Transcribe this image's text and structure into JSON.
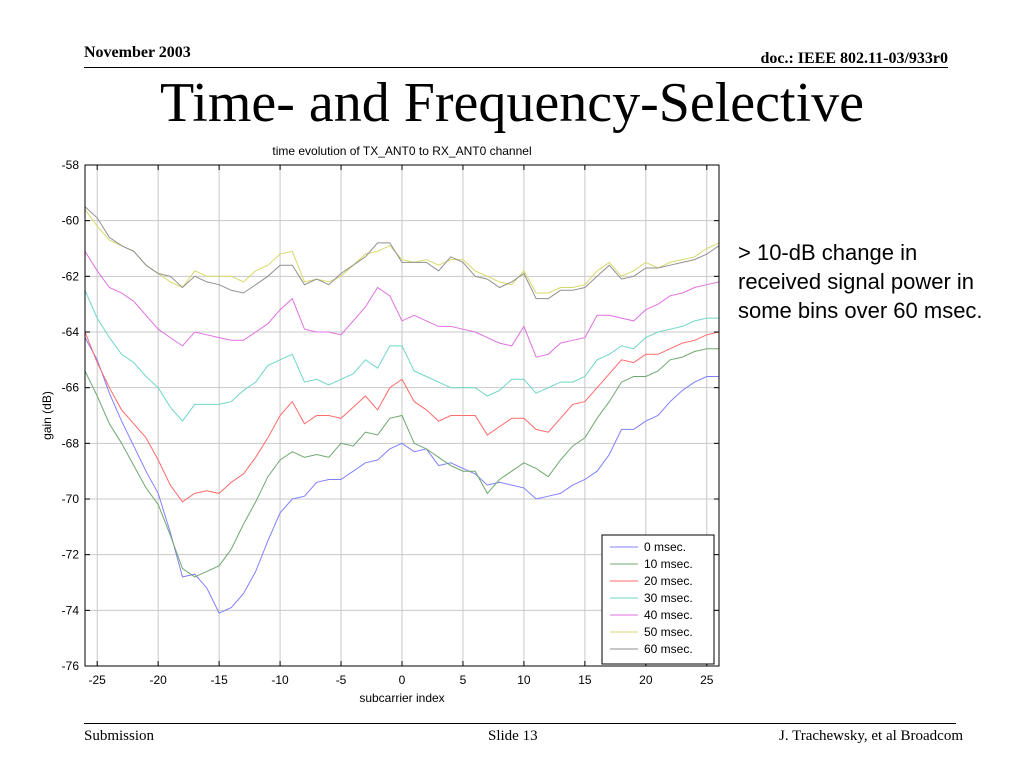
{
  "header": {
    "date": "November 2003",
    "doc": "doc.: IEEE 802.11-03/933r0"
  },
  "slide_title": "Time- and Frequency-Selective",
  "note": "> 10-dB change in received signal power in some bins over 60 msec.",
  "footer": {
    "left": "Submission",
    "center": "Slide 13",
    "right": "J. Trachewsky, et al Broadcom"
  },
  "chart_data": {
    "type": "line",
    "title": "time evolution of TX_ANT0 to RX_ANT0 channel",
    "xlabel": "subcarrier index",
    "ylabel": "gain (dB)",
    "xlim": [
      -26,
      26
    ],
    "ylim": [
      -76,
      -58
    ],
    "xticks": [
      -25,
      -20,
      -15,
      -10,
      -5,
      0,
      5,
      10,
      15,
      20,
      25
    ],
    "yticks": [
      -58,
      -60,
      -62,
      -64,
      -66,
      -68,
      -70,
      -72,
      -74,
      -76
    ],
    "grid": true,
    "legend_position": "bottom-right",
    "x": [
      -26,
      -25,
      -24,
      -23,
      -22,
      -21,
      -20,
      -19,
      -18,
      -17,
      -16,
      -15,
      -14,
      -13,
      -12,
      -11,
      -10,
      -9,
      -8,
      -7,
      -6,
      -5,
      -4,
      -3,
      -2,
      -1,
      0,
      1,
      2,
      3,
      4,
      5,
      6,
      7,
      8,
      9,
      10,
      11,
      12,
      13,
      14,
      15,
      16,
      17,
      18,
      19,
      20,
      21,
      22,
      23,
      24,
      25,
      26
    ],
    "series": [
      {
        "name": "0 msec.",
        "color": "#8080ff",
        "values": [
          -64.2,
          -65.0,
          -66.2,
          -67.2,
          -68.1,
          -69.0,
          -69.8,
          -71.2,
          -72.8,
          -72.7,
          -73.2,
          -74.1,
          -73.9,
          -73.4,
          -72.6,
          -71.5,
          -70.5,
          -70.0,
          -69.9,
          -69.4,
          -69.3,
          -69.3,
          -69.0,
          -68.7,
          -68.6,
          -68.2,
          -68.0,
          -68.3,
          -68.2,
          -68.8,
          -68.7,
          -68.9,
          -69.1,
          -69.5,
          -69.4,
          -69.5,
          -69.6,
          -70.0,
          -69.9,
          -69.8,
          -69.5,
          -69.3,
          -69.0,
          -68.4,
          -67.5,
          -67.5,
          -67.2,
          -67.0,
          -66.5,
          -66.1,
          -65.8,
          -65.6,
          -65.6
        ]
      },
      {
        "name": "10 msec.",
        "color": "#6fa86f",
        "values": [
          -65.4,
          -66.3,
          -67.3,
          -68.0,
          -68.8,
          -69.6,
          -70.2,
          -71.3,
          -72.5,
          -72.8,
          -72.6,
          -72.4,
          -71.8,
          -70.9,
          -70.1,
          -69.2,
          -68.6,
          -68.3,
          -68.5,
          -68.4,
          -68.5,
          -68.0,
          -68.1,
          -67.6,
          -67.7,
          -67.1,
          -67.0,
          -68.0,
          -68.2,
          -68.5,
          -68.8,
          -69.0,
          -69.0,
          -69.8,
          -69.3,
          -69.0,
          -68.7,
          -68.9,
          -69.2,
          -68.6,
          -68.1,
          -67.8,
          -67.1,
          -66.5,
          -65.8,
          -65.6,
          -65.6,
          -65.4,
          -65.0,
          -64.9,
          -64.7,
          -64.6,
          -64.6
        ]
      },
      {
        "name": "20 msec.",
        "color": "#ff6a6a",
        "values": [
          -64.0,
          -65.1,
          -66.0,
          -66.8,
          -67.3,
          -67.8,
          -68.6,
          -69.5,
          -70.1,
          -69.8,
          -69.7,
          -69.8,
          -69.4,
          -69.1,
          -68.5,
          -67.8,
          -67.0,
          -66.5,
          -67.3,
          -67.0,
          -67.0,
          -67.1,
          -66.7,
          -66.3,
          -66.8,
          -66.0,
          -65.7,
          -66.5,
          -66.8,
          -67.2,
          -67.0,
          -67.0,
          -67.0,
          -67.7,
          -67.4,
          -67.1,
          -67.1,
          -67.5,
          -67.6,
          -67.1,
          -66.6,
          -66.5,
          -66.0,
          -65.5,
          -65.0,
          -65.1,
          -64.8,
          -64.8,
          -64.6,
          -64.4,
          -64.3,
          -64.1,
          -64.0
        ]
      },
      {
        "name": "30 msec.",
        "color": "#6fd6c8",
        "values": [
          -62.5,
          -63.5,
          -64.2,
          -64.8,
          -65.1,
          -65.6,
          -66.0,
          -66.7,
          -67.2,
          -66.6,
          -66.6,
          -66.6,
          -66.5,
          -66.1,
          -65.8,
          -65.2,
          -65.0,
          -64.8,
          -65.8,
          -65.7,
          -65.9,
          -65.7,
          -65.5,
          -65.0,
          -65.3,
          -64.5,
          -64.5,
          -65.4,
          -65.6,
          -65.8,
          -66.0,
          -66.0,
          -66.0,
          -66.3,
          -66.1,
          -65.7,
          -65.7,
          -66.2,
          -66.0,
          -65.8,
          -65.8,
          -65.6,
          -65.0,
          -64.8,
          -64.5,
          -64.6,
          -64.2,
          -64.0,
          -63.9,
          -63.8,
          -63.6,
          -63.5,
          -63.5
        ]
      },
      {
        "name": "40 msec.",
        "color": "#e070e0",
        "values": [
          -61.1,
          -61.8,
          -62.4,
          -62.6,
          -62.9,
          -63.4,
          -63.9,
          -64.2,
          -64.5,
          -64.0,
          -64.1,
          -64.2,
          -64.3,
          -64.3,
          -64.0,
          -63.7,
          -63.2,
          -62.8,
          -63.9,
          -64.0,
          -64.0,
          -64.1,
          -63.6,
          -63.1,
          -62.4,
          -62.7,
          -63.6,
          -63.4,
          -63.6,
          -63.8,
          -63.8,
          -63.9,
          -64.0,
          -64.2,
          -64.4,
          -64.5,
          -63.8,
          -64.9,
          -64.8,
          -64.4,
          -64.3,
          -64.2,
          -63.4,
          -63.4,
          -63.5,
          -63.6,
          -63.2,
          -63.0,
          -62.7,
          -62.6,
          -62.4,
          -62.3,
          -62.2
        ]
      },
      {
        "name": "50 msec.",
        "color": "#d9d96a",
        "values": [
          -59.6,
          -60.2,
          -60.7,
          -60.9,
          -61.1,
          -61.6,
          -61.9,
          -62.2,
          -62.4,
          -61.8,
          -62.0,
          -62.0,
          -62.0,
          -62.2,
          -61.8,
          -61.6,
          -61.2,
          -61.1,
          -62.2,
          -62.1,
          -62.2,
          -62.0,
          -61.6,
          -61.2,
          -61.1,
          -60.9,
          -61.4,
          -61.5,
          -61.4,
          -61.6,
          -61.4,
          -61.4,
          -61.8,
          -62.0,
          -62.2,
          -62.3,
          -61.8,
          -62.6,
          -62.6,
          -62.4,
          -62.4,
          -62.3,
          -61.8,
          -61.5,
          -62.0,
          -61.8,
          -61.5,
          -61.7,
          -61.5,
          -61.4,
          -61.3,
          -61.0,
          -60.8
        ]
      },
      {
        "name": "60 msec.",
        "color": "#909090",
        "values": [
          -59.5,
          -59.9,
          -60.6,
          -60.9,
          -61.1,
          -61.6,
          -61.9,
          -62.0,
          -62.4,
          -62.0,
          -62.2,
          -62.3,
          -62.5,
          -62.6,
          -62.3,
          -62.0,
          -61.6,
          -61.6,
          -62.3,
          -62.1,
          -62.3,
          -61.9,
          -61.6,
          -61.3,
          -60.8,
          -60.8,
          -61.5,
          -61.5,
          -61.5,
          -61.8,
          -61.3,
          -61.5,
          -62.0,
          -62.1,
          -62.4,
          -62.2,
          -61.9,
          -62.8,
          -62.8,
          -62.5,
          -62.5,
          -62.4,
          -62.0,
          -61.6,
          -62.1,
          -62.0,
          -61.7,
          -61.7,
          -61.6,
          -61.5,
          -61.4,
          -61.2,
          -60.9
        ]
      }
    ]
  }
}
